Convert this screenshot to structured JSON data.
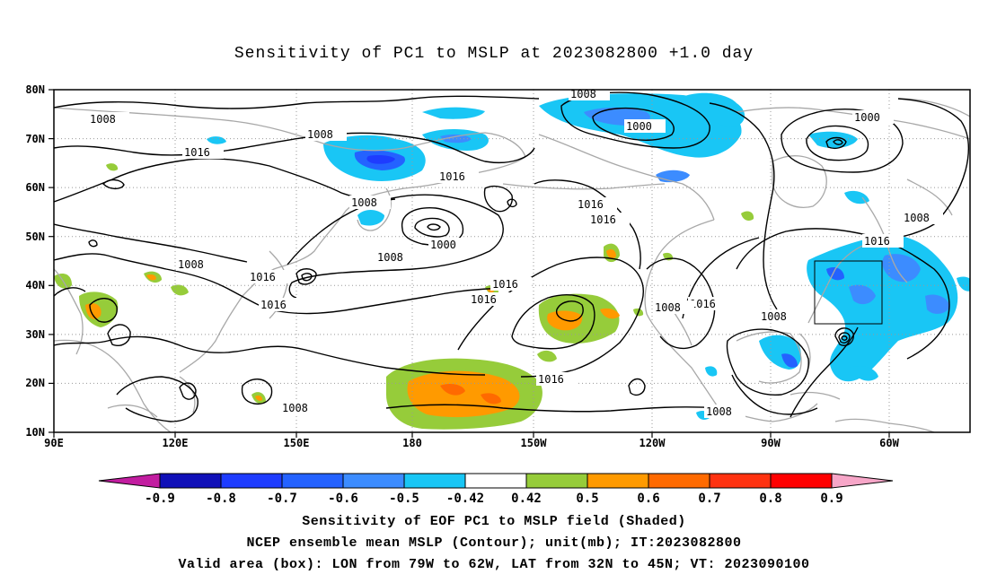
{
  "title": "Sensitivity of PC1 to MSLP at 2023082800 +1.0 day",
  "lat_labels": [
    "80N",
    "70N",
    "60N",
    "50N",
    "40N",
    "30N",
    "20N",
    "10N"
  ],
  "lon_labels": [
    "90E",
    "120E",
    "150E",
    "180",
    "150W",
    "120W",
    "90W",
    "60W"
  ],
  "contour_labels": {
    "l1": "1008",
    "l2": "1008",
    "l3": "1016",
    "l4": "1008",
    "l5": "1000",
    "l6": "1016",
    "l7": "1008",
    "l8": "1000",
    "l9": "1008",
    "l10": "1016",
    "l11": "1016",
    "l12": "1016",
    "l13": "1016",
    "l14": "1008",
    "l15": "1016",
    "l16": "1016",
    "l17": "1016",
    "l18": "1008",
    "l19": "1016",
    "l20": "1008",
    "l21": "1000",
    "l22": "1008",
    "l23": "1016",
    "l24": "1008",
    "l25": "1008"
  },
  "colorbar": {
    "labels": [
      "-0.9",
      "-0.8",
      "-0.7",
      "-0.6",
      "-0.5",
      "-0.42",
      "0.42",
      "0.5",
      "0.6",
      "0.7",
      "0.8",
      "0.9"
    ],
    "colors": [
      "#c21da0",
      "#1010b8",
      "#1e3cff",
      "#2462ff",
      "#3c8cff",
      "#19c6f5",
      "#ffffff",
      "#96cc3a",
      "#ff9a00",
      "#ff6a00",
      "#ff3210",
      "#ff0000",
      "#f7a6c8"
    ]
  },
  "captions": {
    "line1": "Sensitivity of EOF PC1 to MSLP field (Shaded)",
    "line2": "NCEP ensemble mean MSLP (Contour); unit(mb); IT:2023082800",
    "line3": "Valid area (box): LON from 79W to 62W, LAT from 32N to 45N; VT: 2023090100"
  },
  "valid_box": {
    "lon_min": -79,
    "lon_max": -62,
    "lat_min": 32,
    "lat_max": 45
  }
}
